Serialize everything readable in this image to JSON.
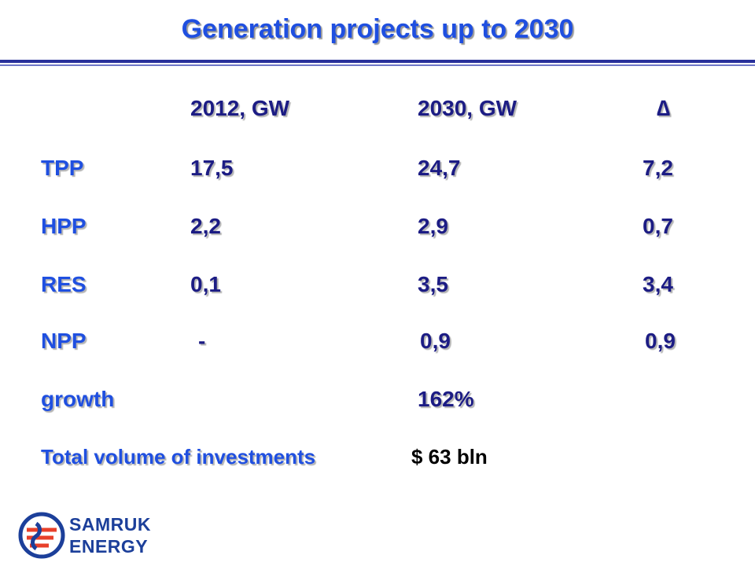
{
  "title": "Generation projects up to 2030",
  "table": {
    "headers": [
      "",
      "2012, GW",
      "2030, GW",
      "∆"
    ],
    "rows": [
      {
        "label": "TPP",
        "v2012": "17,5",
        "v2030": "24,7",
        "delta": "7,2"
      },
      {
        "label": "HPP",
        "v2012": "2,2",
        "v2030": "2,9",
        "delta": "0,7"
      },
      {
        "label": "RES",
        "v2012": "0,1",
        "v2030": "3,5",
        "delta": "3,4"
      },
      {
        "label": "NPP",
        "v2012": "-",
        "v2030": "0,9",
        "delta": "0,9"
      }
    ],
    "growth": {
      "label": "growth",
      "value": "162%"
    }
  },
  "investments": {
    "label": "Total volume of investments",
    "value": "$ 63 bln"
  },
  "logo": {
    "line1": "SAMRUK",
    "line2": "ENERGY"
  },
  "colors": {
    "title": "#1f4fe0",
    "values": "#1c1c84",
    "rule": "#28309a",
    "logo_red": "#e8402a",
    "logo_blue": "#1c3f9a"
  }
}
